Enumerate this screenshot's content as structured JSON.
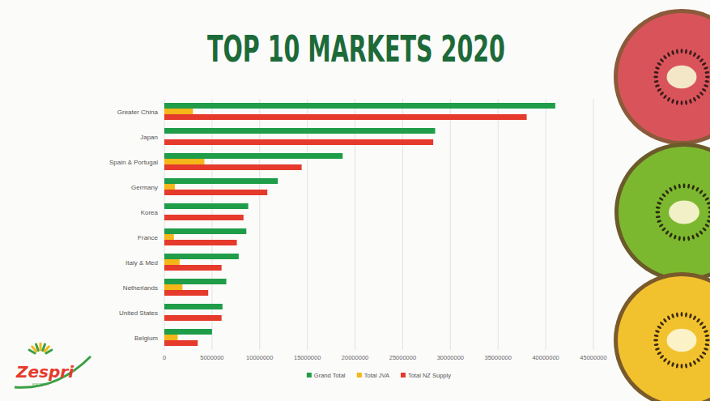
{
  "chart_data": {
    "type": "bar",
    "title": "TOP 10 MARKETS 2020",
    "orientation": "horizontal",
    "categories": [
      "Greater China",
      "Japan",
      "Spain & Portugal",
      "Germany",
      "Korea",
      "France",
      "Italy & Med",
      "Netherlands",
      "United States",
      "Belgium"
    ],
    "series": [
      {
        "name": "Grand Total",
        "color": "#1f9d48",
        "values": [
          41000000,
          28400000,
          18700000,
          11900000,
          8800000,
          8600000,
          7800000,
          6500000,
          6100000,
          5000000
        ]
      },
      {
        "name": "Total JVA",
        "color": "#f4b619",
        "values": [
          3000000,
          0,
          4200000,
          1100000,
          0,
          1000000,
          1600000,
          1900000,
          0,
          1400000
        ]
      },
      {
        "name": "Total NZ Supply",
        "color": "#e53a2c",
        "values": [
          38000000,
          28200000,
          14400000,
          10800000,
          8300000,
          7600000,
          6000000,
          4600000,
          6000000,
          3500000
        ]
      }
    ],
    "xlim": [
      0,
      45000000
    ],
    "xticks": [
      0,
      5000000,
      10000000,
      15000000,
      20000000,
      25000000,
      30000000,
      35000000,
      40000000,
      45000000
    ],
    "grid": true,
    "legend": "bottom",
    "data_labels": false
  },
  "logo": {
    "text": "Zespri",
    "subtext": "KIWIFRUIT"
  }
}
